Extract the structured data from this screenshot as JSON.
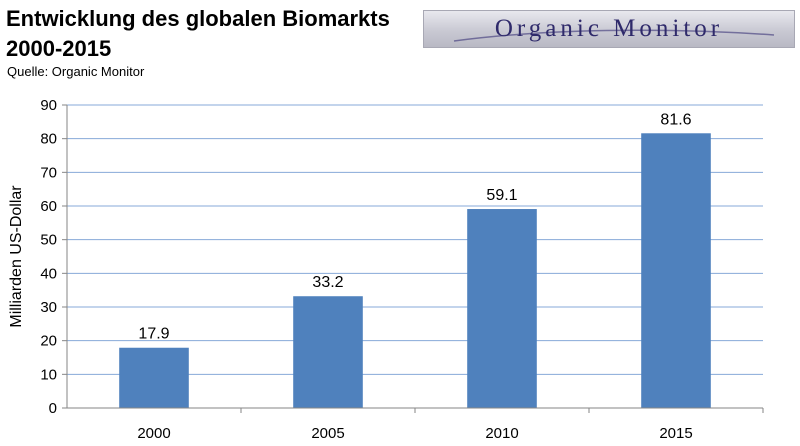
{
  "header": {
    "title_line1": "Entwicklung des globalen Biomarkts",
    "title_line2": "2000-2015",
    "source": "Quelle: Organic Monitor",
    "logo_text": "Organic Monitor"
  },
  "colors": {
    "bar": "#4f81bd",
    "grid": "#87a9d8",
    "axis": "#868686"
  },
  "chart_data": {
    "type": "bar",
    "title": "Entwicklung des globalen Biomarkts 2000-2015",
    "categories": [
      "2000",
      "2005",
      "2010",
      "2015"
    ],
    "values": [
      17.9,
      33.2,
      59.1,
      81.6
    ],
    "data_labels": [
      "17.9",
      "33.2",
      "59.1",
      "81.6"
    ],
    "xlabel": "",
    "ylabel": "Milliarden US-Dollar",
    "ylim": [
      0,
      90
    ],
    "yticks": [
      0,
      10,
      20,
      30,
      40,
      50,
      60,
      70,
      80,
      90
    ],
    "grid": true,
    "legend": "none"
  }
}
